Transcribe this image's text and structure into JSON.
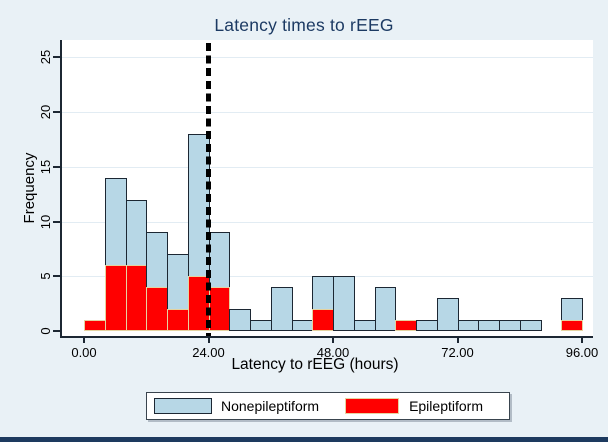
{
  "title": "Latency times to rEEG",
  "x_axis": {
    "label": "Latency to rEEG (hours)",
    "tick_labels": [
      "0.00",
      "24.00",
      "48.00",
      "72.00",
      "96.00"
    ],
    "tick_values": [
      0,
      24,
      48,
      72,
      96
    ]
  },
  "y_axis": {
    "label": "Frequency",
    "tick_labels": [
      "0",
      "5",
      "10",
      "15",
      "20",
      "25"
    ],
    "tick_values": [
      0,
      5,
      10,
      15,
      20,
      25
    ]
  },
  "legend": {
    "position": "bottom-center",
    "items": [
      {
        "label": "Nonepileptiform",
        "swatch_color": "#b7d7e6",
        "swatch_border": "#1c2733"
      },
      {
        "label": "Epileptiform",
        "swatch_color": "#ff0000",
        "swatch_border": "#e5d3a0"
      }
    ]
  },
  "reference_line": {
    "x_hours": 24,
    "style": "dashed",
    "color": "#000000"
  },
  "colors": {
    "figure_background": "#e9f1f6",
    "plot_background": "#ffffff",
    "gridline": "#e2ecf3",
    "axis_line": "#1c2733",
    "title_text": "#1c3a63",
    "nonepileptiform_fill": "#b7d7e6",
    "nonepileptiform_border": "#1c2733",
    "epileptiform_fill": "#ff0000",
    "epileptiform_border": "#e5d3a0",
    "reference_line": "#000000",
    "legend_border": "#39444e",
    "bottom_strip": "#1d3a5f"
  },
  "chart_data": {
    "type": "bar",
    "subtype": "stacked-histogram",
    "title": "Latency times to rEEG",
    "xlabel": "Latency to rEEG (hours)",
    "ylabel": "Frequency",
    "xlim": [
      0,
      98
    ],
    "ylim": [
      0,
      26.5
    ],
    "grid": "horizontal gridlines at y = 5,10,15,20,25",
    "gridline_values": [
      5,
      10,
      15,
      20,
      25
    ],
    "legend_position": "bottom",
    "bin_width_hours": 4,
    "bin_starts_hours": [
      0,
      4,
      8,
      12,
      16,
      20,
      24,
      28,
      32,
      36,
      40,
      44,
      48,
      52,
      56,
      60,
      64,
      68,
      72,
      76,
      80,
      84,
      88,
      92
    ],
    "series": [
      {
        "name": "Epileptiform",
        "color": "#ff0000",
        "values": [
          1,
          6,
          6,
          4,
          2,
          5,
          4,
          0,
          0,
          0,
          0,
          2,
          0,
          0,
          0,
          1,
          0,
          0,
          0,
          0,
          0,
          0,
          0,
          1
        ]
      },
      {
        "name": "Nonepileptiform",
        "color": "#b7d7e6",
        "values": [
          0,
          8,
          6,
          5,
          5,
          13,
          5,
          2,
          1,
          4,
          1,
          3,
          5,
          1,
          4,
          0,
          1,
          3,
          1,
          1,
          1,
          1,
          0,
          2
        ]
      }
    ],
    "stacked_totals": [
      1,
      14,
      12,
      9,
      7,
      18,
      9,
      2,
      1,
      4,
      1,
      5,
      5,
      1,
      4,
      1,
      1,
      3,
      1,
      1,
      1,
      1,
      0,
      3
    ],
    "reference_line_hours": 24
  }
}
